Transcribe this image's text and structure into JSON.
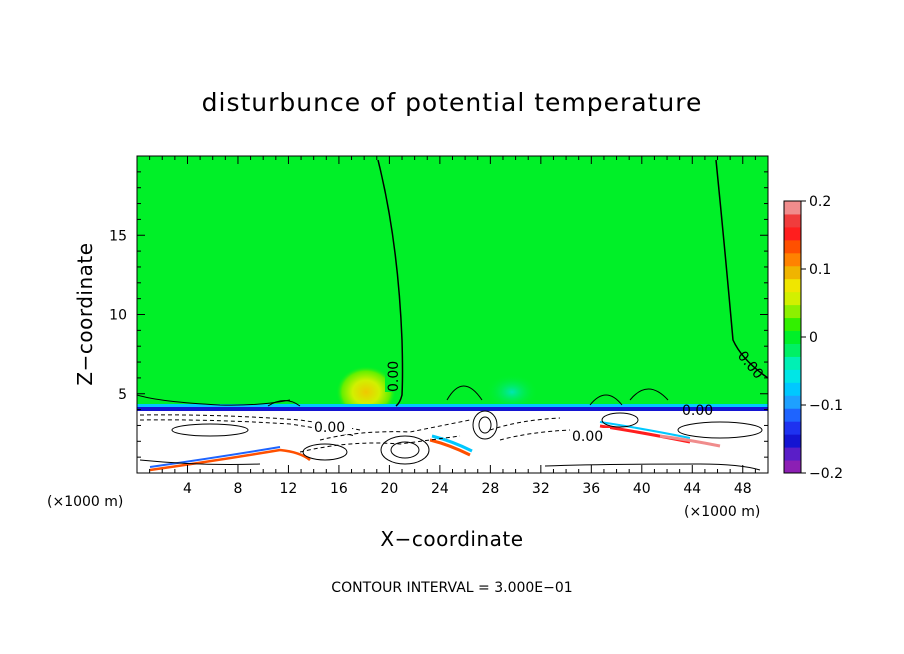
{
  "chart_data": {
    "type": "contour",
    "title": "disturbunce of potential temperature",
    "xlabel": "X−coordinate",
    "ylabel": "Z−coordinate",
    "x_unit": "(×1000 m)",
    "xlim": [
      0,
      50
    ],
    "ylim": [
      0,
      20
    ],
    "x_ticks": [
      4,
      8,
      12,
      16,
      20,
      24,
      28,
      32,
      36,
      40,
      44,
      48
    ],
    "y_ticks": [
      5,
      10,
      15
    ],
    "colorbar": {
      "min": -0.2,
      "max": 0.2,
      "ticks": [
        0.2,
        0.1,
        0,
        -0.1,
        -0.2
      ],
      "tick_labels": [
        "0.2",
        "0.1",
        "0",
        "−0.1",
        "−0.2"
      ],
      "levels": 20,
      "colors": [
        "#8c1fb4",
        "#5a1ec8",
        "#1414d2",
        "#1e32f0",
        "#1e64ff",
        "#1ea0ff",
        "#00c8ff",
        "#00e6e6",
        "#00f0b4",
        "#00f064",
        "#00f028",
        "#32f000",
        "#8cf000",
        "#d2f000",
        "#f0e600",
        "#f0b400",
        "#ff8200",
        "#ff5000",
        "#ff1e1e",
        "#f03c3c",
        "#f08c8c"
      ]
    },
    "contour_labels": [
      "0.00",
      "0.00",
      "0.00",
      "0.00",
      "0.00"
    ],
    "contour_interval_note": "CONTOUR INTERVAL = 3.000E−01"
  }
}
